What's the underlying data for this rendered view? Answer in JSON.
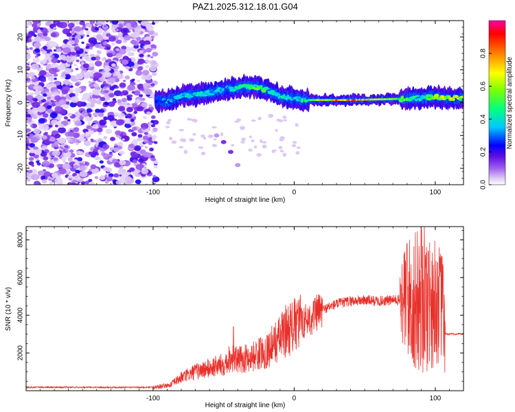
{
  "title": "PAZ1.2025.312.18.01.G04",
  "chart_data": [
    {
      "type": "heatmap",
      "name": "spectrogram",
      "xlabel": "Height of straight line (km)",
      "ylabel": "Frequency (Hz)",
      "xlim": [
        -190,
        120
      ],
      "ylim": [
        -25,
        25
      ],
      "xticks": [
        -100,
        0,
        100
      ],
      "xtick_labels": [
        "-100",
        "0",
        "100"
      ],
      "yticks": [
        -20,
        -10,
        0,
        10,
        20
      ],
      "ytick_labels": [
        "-20",
        "-10",
        "0",
        "10",
        "20"
      ],
      "colorbar": {
        "label": "Normalized spectral amplitude",
        "range": [
          0,
          1
        ],
        "ticks": [
          0.0,
          0.2,
          0.4,
          0.6,
          0.8
        ],
        "tick_labels": [
          "0.0",
          "0.2",
          "0.4",
          "0.6",
          "0.8"
        ],
        "colors": [
          "#ffffff",
          "#dcc8f5",
          "#a060f0",
          "#6010e0",
          "#0000ff",
          "#00c8ff",
          "#00ff80",
          "#80ff00",
          "#ffff00",
          "#ff8000",
          "#ff0000",
          "#ff00a0"
        ]
      },
      "ridge": {
        "x": [
          -98,
          -90,
          -80,
          -70,
          -60,
          -50,
          -40,
          -30,
          -20,
          -10,
          0,
          10,
          20,
          40,
          60,
          80,
          90,
          100,
          110,
          120
        ],
        "frequency": [
          0.5,
          0.5,
          2,
          2.5,
          3,
          4,
          4.5,
          5,
          4,
          2,
          1.2,
          0.8,
          0.8,
          0.8,
          1,
          1.2,
          1.5,
          1.8,
          1.2,
          1.5
        ],
        "amplitude": [
          0.3,
          0.35,
          0.35,
          0.4,
          0.4,
          0.35,
          0.45,
          0.55,
          0.5,
          0.45,
          0.4,
          0.5,
          0.7,
          0.95,
          0.7,
          0.55,
          0.45,
          0.6,
          0.7,
          0.6
        ]
      },
      "noise_region_x": [
        -190,
        -98
      ],
      "streak": {
        "x": [
          -55,
          -50,
          -45,
          -40
        ],
        "frequency": [
          -10,
          -12,
          -15,
          -19
        ]
      }
    },
    {
      "type": "line",
      "name": "snr",
      "xlabel": "Height of straight line (km)",
      "ylabel": "SNR (10 * v/v)",
      "xlim": [
        -190,
        120
      ],
      "ylim": [
        0,
        8700
      ],
      "xticks": [
        -100,
        0,
        100
      ],
      "xtick_labels": [
        "-100",
        "0",
        "100"
      ],
      "yticks": [
        2000,
        4000,
        6000,
        8000
      ],
      "ytick_labels": [
        "2000",
        "4000",
        "6000",
        "8000"
      ],
      "line_color": "#e8302a",
      "envelope": {
        "x": [
          -190,
          -100,
          -88,
          -80,
          -70,
          -60,
          -50,
          -45,
          -40,
          -30,
          -20,
          -10,
          -5,
          0,
          5,
          10,
          20,
          30,
          40,
          50,
          60,
          70,
          75,
          80,
          85,
          90,
          95,
          100,
          105,
          107,
          120
        ],
        "y": [
          180,
          180,
          300,
          700,
          1000,
          1200,
          1400,
          1800,
          1600,
          1800,
          2100,
          2800,
          3300,
          3400,
          3600,
          3800,
          4300,
          4600,
          4750,
          4800,
          4750,
          4800,
          4800,
          4900,
          4600,
          4800,
          4800,
          4700,
          4500,
          3000,
          3000
        ]
      },
      "peaks": [
        {
          "x": -43,
          "y": 3400
        },
        {
          "x": 5,
          "y": 4350
        },
        {
          "x": 80,
          "y": 7800
        },
        {
          "x": 90,
          "y": 8650
        },
        {
          "x": 95,
          "y": 7400
        }
      ]
    }
  ]
}
